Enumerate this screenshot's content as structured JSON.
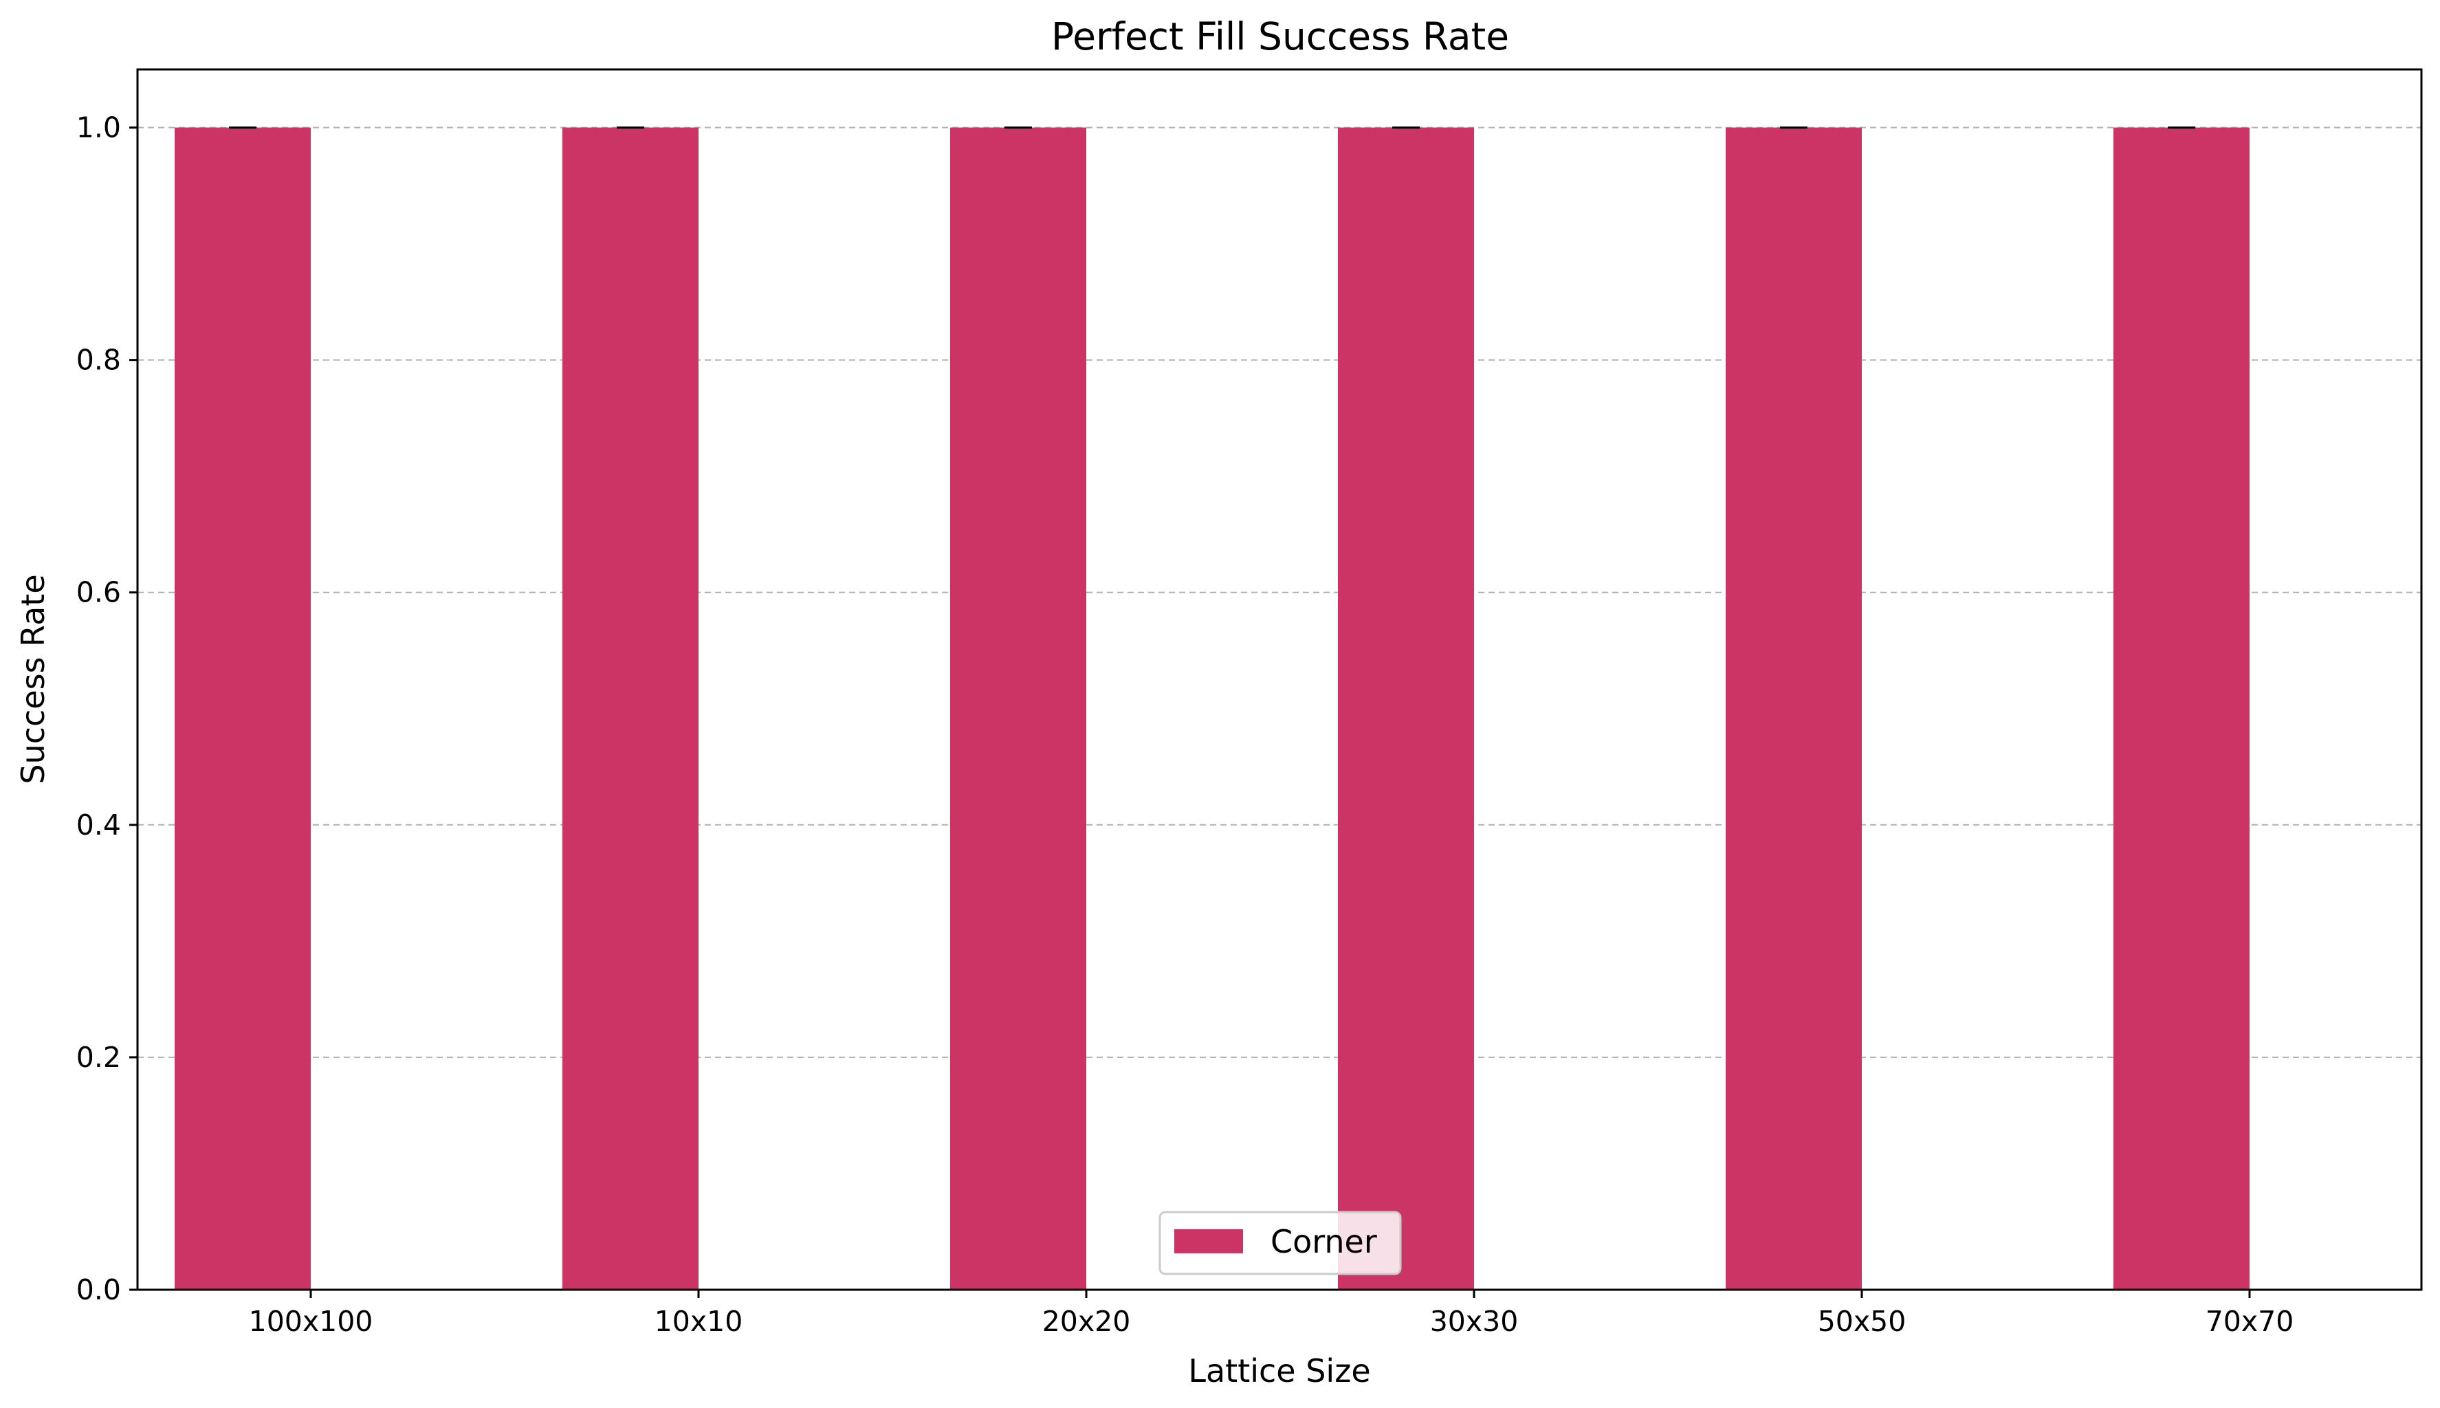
{
  "chart_data": {
    "type": "bar",
    "title": "Perfect Fill Success Rate",
    "xlabel": "Lattice Size",
    "ylabel": "Success Rate",
    "categories": [
      "100x100",
      "10x10",
      "20x20",
      "30x30",
      "50x50",
      "70x70"
    ],
    "series": [
      {
        "name": "Corner",
        "color": "#cc3466",
        "values": [
          1.0,
          1.0,
          1.0,
          1.0,
          1.0,
          1.0
        ],
        "error": [
          0,
          0,
          0,
          0,
          0,
          0
        ]
      }
    ],
    "ylim": [
      0,
      1.05
    ],
    "yticks": [
      0.0,
      0.2,
      0.4,
      0.6,
      0.8,
      1.0
    ],
    "ytick_labels": [
      "0.0",
      "0.2",
      "0.4",
      "0.6",
      "0.8",
      "1.0"
    ],
    "grid": {
      "axis": "y",
      "style": "dashed"
    },
    "legend": {
      "position": "bottom-center"
    }
  }
}
